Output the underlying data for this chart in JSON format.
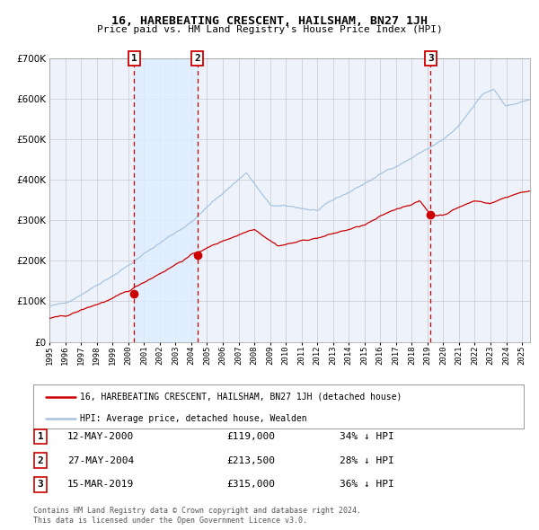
{
  "title": "16, HAREBEATING CRESCENT, HAILSHAM, BN27 1JH",
  "subtitle": "Price paid vs. HM Land Registry's House Price Index (HPI)",
  "legend_line1": "16, HAREBEATING CRESCENT, HAILSHAM, BN27 1JH (detached house)",
  "legend_line2": "HPI: Average price, detached house, Wealden",
  "footer1": "Contains HM Land Registry data © Crown copyright and database right 2024.",
  "footer2": "This data is licensed under the Open Government Licence v3.0.",
  "transactions": [
    {
      "label": "1",
      "date": "12-MAY-2000",
      "price": 119000,
      "pct": "34% ↓ HPI",
      "year_x": 2000.37
    },
    {
      "label": "2",
      "date": "27-MAY-2004",
      "price": 213500,
      "pct": "28% ↓ HPI",
      "year_x": 2004.4
    },
    {
      "label": "3",
      "date": "15-MAR-2019",
      "price": 315000,
      "pct": "36% ↓ HPI",
      "year_x": 2019.2
    }
  ],
  "hpi_color": "#a8c4e0",
  "price_color": "#cc0000",
  "shade_color": "#ddeeff",
  "dashed_color": "#cc0000",
  "grid_color": "#c8c8d0",
  "bg_color": "#ffffff",
  "plot_bg_color": "#eef2fa",
  "xmin": 1995.0,
  "xmax": 2025.5,
  "ymin": 0,
  "ymax": 700000,
  "yticks": [
    0,
    100000,
    200000,
    300000,
    400000,
    500000,
    600000,
    700000
  ],
  "ytick_labels": [
    "£0",
    "£100K",
    "£200K",
    "£300K",
    "£400K",
    "£500K",
    "£600K",
    "£700K"
  ]
}
